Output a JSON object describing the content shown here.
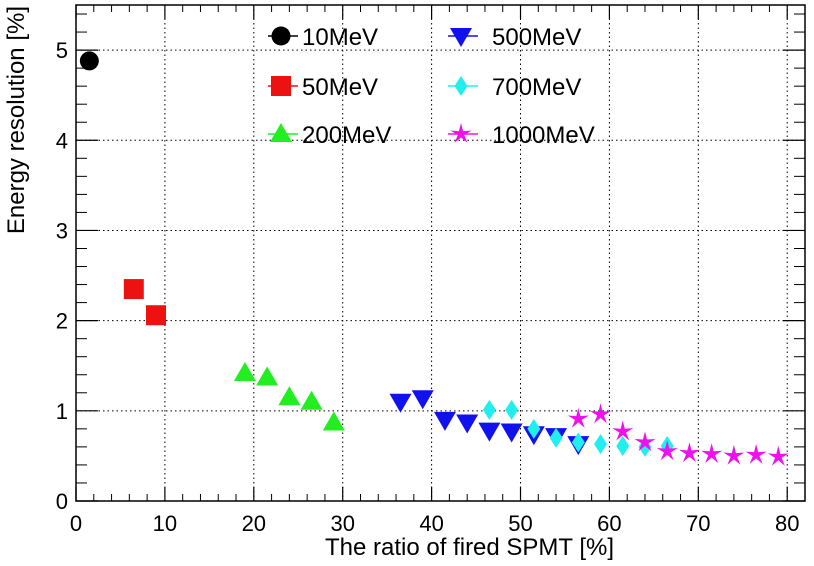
{
  "chart_data": {
    "type": "scatter",
    "xlabel": "The ratio of fired SPMT [%]",
    "ylabel": "Energy resolution [%]",
    "xlim": [
      0,
      82
    ],
    "ylim": [
      0,
      5.5
    ],
    "x_ticks": [
      "0",
      "10",
      "20",
      "30",
      "40",
      "50",
      "60",
      "70",
      "80"
    ],
    "y_ticks": [
      "0",
      "1",
      "2",
      "3",
      "4",
      "5"
    ],
    "grid": true,
    "legend_position": "top-center",
    "series": [
      {
        "name": "10MeV",
        "marker": "circle",
        "color": "#000000",
        "x": [
          1.5
        ],
        "y": [
          4.88
        ]
      },
      {
        "name": "50MeV",
        "marker": "square",
        "color": "#ee1111",
        "x": [
          6.5,
          9.0
        ],
        "y": [
          2.35,
          2.06
        ]
      },
      {
        "name": "200MeV",
        "marker": "triangle-up",
        "color": "#22ee22",
        "x": [
          19.0,
          21.5,
          24.0,
          26.5,
          29.0
        ],
        "y": [
          1.42,
          1.37,
          1.15,
          1.1,
          0.87
        ]
      },
      {
        "name": "500MeV",
        "marker": "triangle-down",
        "color": "#1111ee",
        "x": [
          36.5,
          39.0,
          41.5,
          44.0,
          46.5,
          49.0,
          51.5,
          54.0,
          56.5
        ],
        "y": [
          1.1,
          1.14,
          0.9,
          0.87,
          0.78,
          0.77,
          0.74,
          0.72,
          0.63
        ]
      },
      {
        "name": "700MeV",
        "marker": "diamond",
        "color": "#22eeee",
        "x": [
          46.5,
          49.0,
          51.5,
          54.0,
          56.5,
          59.0,
          61.5,
          64.0,
          66.5
        ],
        "y": [
          1.01,
          1.01,
          0.8,
          0.7,
          0.65,
          0.63,
          0.61,
          0.6,
          0.61
        ]
      },
      {
        "name": "1000MeV",
        "marker": "star",
        "color": "#ee11ee",
        "x": [
          56.5,
          59.0,
          61.5,
          64.0,
          66.5,
          69.0,
          71.5,
          74.0,
          76.5,
          79.0
        ],
        "y": [
          0.91,
          0.96,
          0.77,
          0.65,
          0.55,
          0.53,
          0.52,
          0.5,
          0.51,
          0.49
        ]
      }
    ]
  }
}
